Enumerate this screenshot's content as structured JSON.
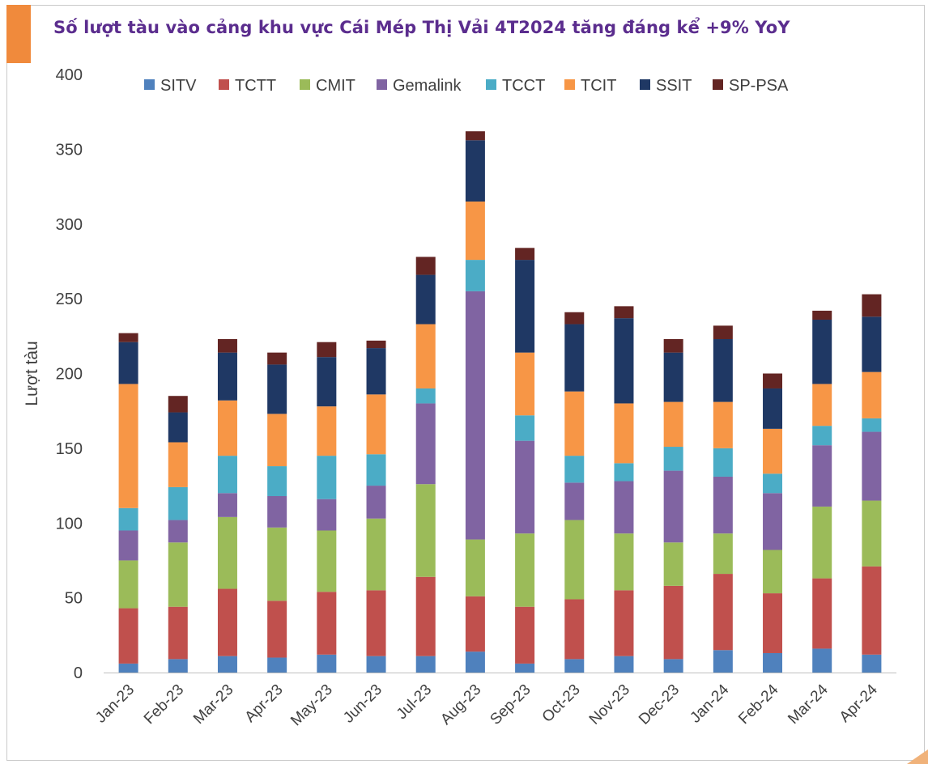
{
  "title": "Số lượt tàu vào cảng khu vực Cái Mép Thị Vải 4T2024 tăng đáng kể +9% YoY",
  "colors": {
    "title": "#5b2d8e",
    "accent": "#f08a3c"
  },
  "chart_data": {
    "type": "bar",
    "stacked": true,
    "title": "Số lượt tàu vào cảng khu vực Cái Mép Thị Vải 4T2024 tăng đáng kể +9% YoY",
    "xlabel": "",
    "ylabel": "Lượt tàu",
    "ylim": [
      0,
      400
    ],
    "yticks": [
      0,
      50,
      100,
      150,
      200,
      250,
      300,
      350,
      400
    ],
    "grid": false,
    "legend_position": "top",
    "categories": [
      "Jan-23",
      "Feb-23",
      "Mar-23",
      "Apr-23",
      "May-23",
      "Jun-23",
      "Jul-23",
      "Aug-23",
      "Sep-23",
      "Oct-23",
      "Nov-23",
      "Dec-23",
      "Jan-24",
      "Feb-24",
      "Mar-24",
      "Apr-24"
    ],
    "series": [
      {
        "name": "SITV",
        "color": "#4f81bd",
        "values": [
          6,
          9,
          11,
          10,
          12,
          11,
          11,
          14,
          6,
          9,
          11,
          9,
          15,
          13,
          16,
          12
        ]
      },
      {
        "name": "TCTT",
        "color": "#c0504d",
        "values": [
          37,
          35,
          45,
          38,
          42,
          44,
          53,
          37,
          38,
          40,
          44,
          49,
          51,
          40,
          47,
          59
        ]
      },
      {
        "name": "CMIT",
        "color": "#9bbb59",
        "values": [
          32,
          43,
          48,
          49,
          41,
          48,
          62,
          38,
          49,
          53,
          38,
          29,
          27,
          29,
          48,
          44
        ]
      },
      {
        "name": "Gemalink",
        "color": "#8064a2",
        "values": [
          20,
          15,
          16,
          21,
          21,
          22,
          54,
          166,
          62,
          25,
          35,
          48,
          38,
          38,
          41,
          46
        ]
      },
      {
        "name": "TCCT",
        "color": "#4bacc6",
        "values": [
          15,
          22,
          25,
          20,
          29,
          21,
          10,
          21,
          17,
          18,
          12,
          16,
          19,
          13,
          13,
          9
        ]
      },
      {
        "name": "TCIT",
        "color": "#f79646",
        "values": [
          83,
          30,
          37,
          35,
          33,
          40,
          43,
          39,
          42,
          43,
          40,
          30,
          31,
          30,
          28,
          31
        ]
      },
      {
        "name": "SSIT",
        "color": "#1f3864",
        "values": [
          28,
          20,
          32,
          33,
          33,
          31,
          33,
          41,
          62,
          45,
          57,
          33,
          42,
          27,
          43,
          37
        ]
      },
      {
        "name": "SP-PSA",
        "color": "#632523",
        "values": [
          6,
          11,
          9,
          8,
          10,
          5,
          12,
          6,
          8,
          8,
          8,
          9,
          9,
          10,
          6,
          15
        ]
      }
    ]
  }
}
